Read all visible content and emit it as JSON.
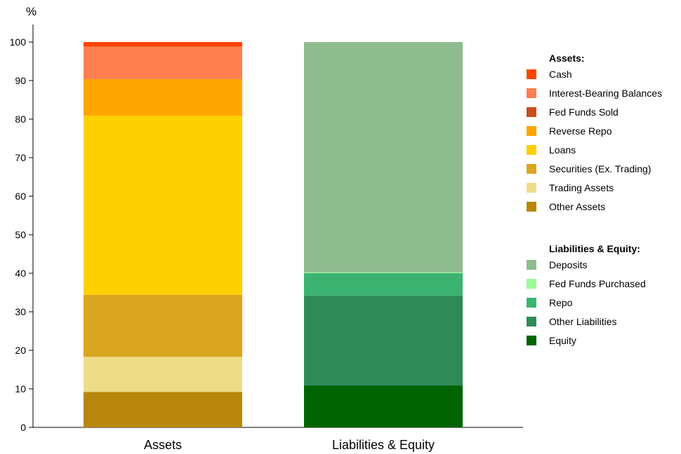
{
  "chart_data": {
    "type": "bar",
    "stacked": true,
    "ylabel": "%",
    "ylim": [
      0,
      100
    ],
    "yticks": [
      0,
      10,
      20,
      30,
      40,
      50,
      60,
      70,
      80,
      90,
      100
    ],
    "grid": false,
    "legend_position": "right",
    "categories": [
      "Assets",
      "Liabilities & Equity"
    ],
    "groups": [
      {
        "title": "Assets:",
        "category": "Assets",
        "series": [
          {
            "name": "Cash",
            "value": 1.2,
            "color": "#ff4500"
          },
          {
            "name": "Interest-Bearing Balances",
            "value": 8.3,
            "color": "#ff7f50"
          },
          {
            "name": "Fed Funds Sold",
            "value": 0.1,
            "color": "#c8501e"
          },
          {
            "name": "Reverse Repo",
            "value": 9.5,
            "color": "#ffa500"
          },
          {
            "name": "Loans",
            "value": 46.5,
            "color": "#ffd000"
          },
          {
            "name": "Securities (Ex. Trading)",
            "value": 16.1,
            "color": "#daa520"
          },
          {
            "name": "Trading Assets",
            "value": 9.1,
            "color": "#eedd88"
          },
          {
            "name": "Other Assets",
            "value": 9.2,
            "color": "#b8860b"
          }
        ]
      },
      {
        "title": "Liabilities & Equity:",
        "category": "Liabilities & Equity",
        "series": [
          {
            "name": "Deposits",
            "value": 59.8,
            "color": "#8fbc8f"
          },
          {
            "name": "Fed Funds Purchased",
            "value": 0.2,
            "color": "#98fb98"
          },
          {
            "name": "Repo",
            "value": 5.8,
            "color": "#3cb371"
          },
          {
            "name": "Other Liabilities",
            "value": 23.3,
            "color": "#2e8b57"
          },
          {
            "name": "Equity",
            "value": 10.9,
            "color": "#006400"
          }
        ]
      }
    ]
  }
}
